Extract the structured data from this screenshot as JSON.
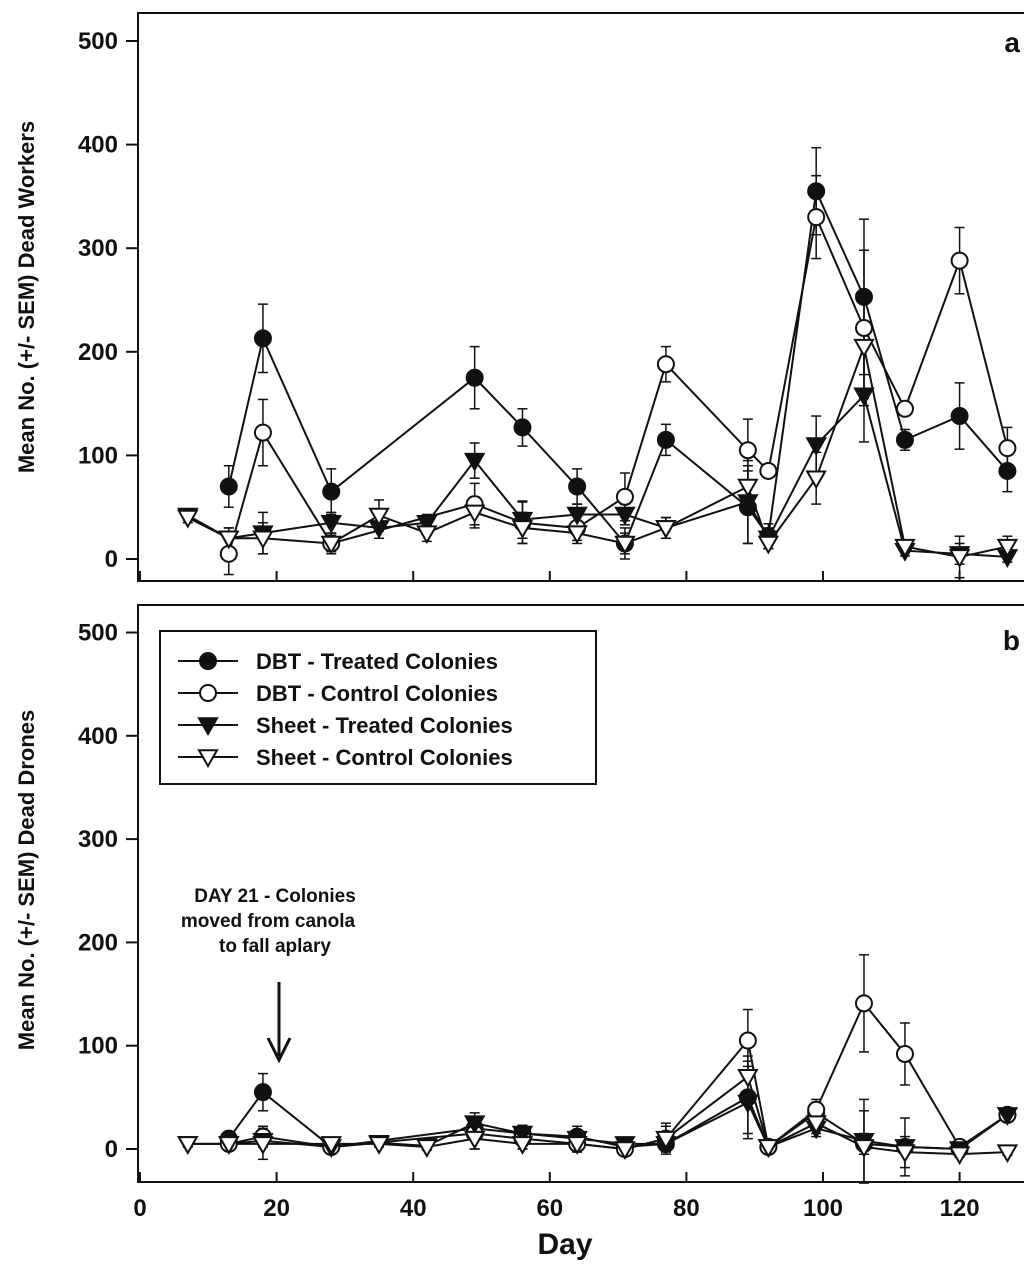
{
  "chart_data": [
    {
      "type": "line",
      "panel": "a",
      "ylabel": "Mean No. (+/- SEM) Dead Workers",
      "xlabel": "",
      "xlim": [
        0,
        128
      ],
      "ylim": [
        0,
        500
      ],
      "yticks": [
        0,
        100,
        200,
        300,
        400,
        500
      ],
      "xticks": [
        0,
        20,
        40,
        60,
        80,
        100,
        120
      ],
      "grid": false,
      "series": [
        {
          "name": "DBT - Treated Colonies",
          "marker": "filled-circle",
          "x": [
            13,
            18,
            28,
            49,
            56,
            64,
            71,
            77,
            89,
            92,
            99,
            106,
            112,
            120,
            127
          ],
          "y": [
            70,
            213,
            65,
            175,
            127,
            70,
            15,
            115,
            50,
            22,
            355,
            253,
            115,
            138,
            85
          ],
          "err": [
            20,
            33,
            22,
            30,
            18,
            17,
            15,
            15,
            35,
            12,
            42,
            75,
            10,
            32,
            20
          ]
        },
        {
          "name": "DBT - Control Colonies",
          "marker": "open-circle",
          "x": [
            13,
            18,
            28,
            49,
            56,
            64,
            71,
            77,
            89,
            92,
            99,
            106,
            112,
            120,
            127
          ],
          "y": [
            5,
            122,
            15,
            53,
            35,
            30,
            60,
            188,
            105,
            85,
            330,
            223,
            145,
            288,
            107
          ],
          "err": [
            20,
            32,
            10,
            20,
            20,
            12,
            23,
            17,
            30,
            5,
            40,
            75,
            5,
            32,
            20
          ]
        },
        {
          "name": "Sheet - Treated Colonies",
          "marker": "filled-triangle-down",
          "x": [
            7,
            13,
            18,
            28,
            35,
            42,
            49,
            56,
            64,
            71,
            77,
            89,
            92,
            99,
            106,
            112,
            120,
            127
          ],
          "y": [
            42,
            20,
            25,
            35,
            30,
            35,
            95,
            38,
            43,
            43,
            30,
            55,
            20,
            110,
            158,
            8,
            5,
            2
          ],
          "err": [
            5,
            10,
            20,
            10,
            10,
            8,
            17,
            18,
            10,
            10,
            10,
            40,
            10,
            28,
            45,
            5,
            10,
            5
          ]
        },
        {
          "name": "Sheet - Control Colonies",
          "marker": "open-triangle-down",
          "x": [
            7,
            13,
            18,
            28,
            35,
            42,
            49,
            56,
            64,
            71,
            77,
            89,
            92,
            99,
            106,
            112,
            120,
            127
          ],
          "y": [
            40,
            20,
            20,
            15,
            42,
            25,
            45,
            30,
            25,
            15,
            30,
            70,
            15,
            78,
            205,
            12,
            2,
            12
          ],
          "err": [
            5,
            10,
            15,
            8,
            15,
            8,
            15,
            15,
            10,
            10,
            10,
            20,
            5,
            25,
            50,
            5,
            20,
            10
          ]
        }
      ]
    },
    {
      "type": "line",
      "panel": "b",
      "ylabel": "Mean No. (+/- SEM) Dead Drones",
      "xlabel": "Day",
      "xlim": [
        0,
        128
      ],
      "ylim": [
        0,
        500
      ],
      "yticks": [
        0,
        100,
        200,
        300,
        400,
        500
      ],
      "xticks": [
        0,
        20,
        40,
        60,
        80,
        100,
        120
      ],
      "grid": false,
      "annotation": {
        "lines": [
          "DAY 21 -  Colonies",
          "moved from canola",
          "to fall aplary"
        ]
      },
      "series": [
        {
          "name": "DBT - Treated Colonies",
          "marker": "filled-circle",
          "x": [
            13,
            18,
            28,
            49,
            56,
            64,
            71,
            77,
            89,
            92,
            99,
            106,
            112,
            120,
            127
          ],
          "y": [
            10,
            55,
            2,
            20,
            15,
            12,
            2,
            5,
            50,
            2,
            35,
            5,
            2,
            0,
            33
          ],
          "err": [
            5,
            18,
            3,
            10,
            8,
            10,
            5,
            8,
            35,
            3,
            10,
            10,
            5,
            3,
            5
          ]
        },
        {
          "name": "DBT - Control Colonies",
          "marker": "open-circle",
          "x": [
            13,
            18,
            28,
            49,
            56,
            64,
            71,
            77,
            89,
            92,
            99,
            106,
            112,
            120,
            127
          ],
          "y": [
            5,
            12,
            2,
            15,
            10,
            5,
            0,
            10,
            105,
            2,
            38,
            141,
            92,
            2,
            33
          ],
          "err": [
            5,
            10,
            3,
            15,
            10,
            8,
            5,
            12,
            30,
            3,
            10,
            47,
            30,
            3,
            5
          ]
        },
        {
          "name": "Sheet - Treated Colonies",
          "marker": "filled-triangle-down",
          "x": [
            7,
            13,
            18,
            28,
            35,
            42,
            49,
            56,
            64,
            71,
            77,
            89,
            92,
            99,
            106,
            112,
            120,
            127
          ],
          "y": [
            5,
            5,
            8,
            2,
            6,
            3,
            25,
            15,
            10,
            5,
            5,
            45,
            2,
            20,
            8,
            2,
            0,
            33
          ],
          "err": [
            3,
            5,
            5,
            3,
            3,
            3,
            10,
            5,
            5,
            5,
            5,
            35,
            3,
            8,
            40,
            28,
            3,
            5
          ]
        },
        {
          "name": "Sheet - Control Colonies",
          "marker": "open-triangle-down",
          "x": [
            7,
            13,
            18,
            28,
            35,
            42,
            49,
            56,
            64,
            71,
            77,
            89,
            92,
            99,
            106,
            112,
            120,
            127
          ],
          "y": [
            5,
            5,
            5,
            5,
            5,
            2,
            10,
            5,
            5,
            0,
            10,
            70,
            2,
            25,
            2,
            -3,
            -5,
            -3
          ],
          "err": [
            3,
            5,
            15,
            3,
            3,
            3,
            10,
            5,
            5,
            5,
            15,
            20,
            3,
            10,
            35,
            15,
            3,
            3
          ]
        }
      ]
    }
  ]
}
